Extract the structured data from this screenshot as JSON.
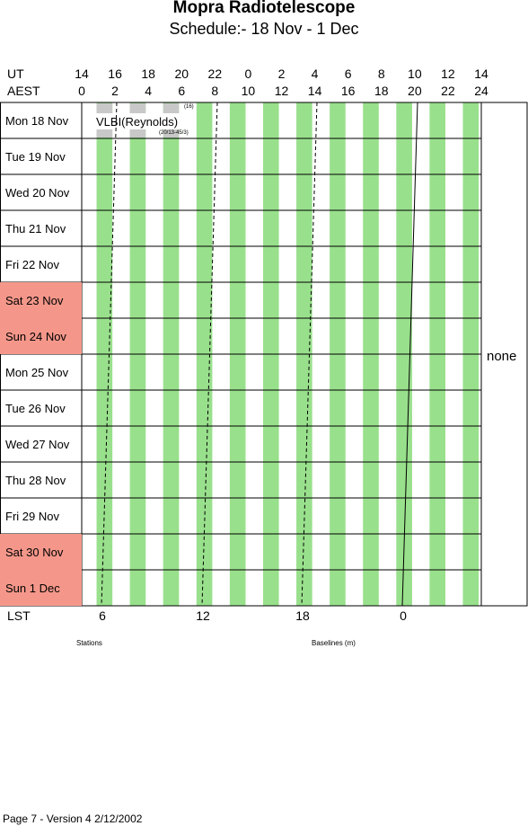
{
  "title": "Mopra Radiotelescope",
  "subtitle": "Schedule:- 18 Nov - 1  Dec",
  "header": {
    "ut_label": "UT",
    "aest_label": "AEST",
    "ut_ticks": [
      "14",
      "16",
      "18",
      "20",
      "22",
      "0",
      "2",
      "4",
      "6",
      "8",
      "10",
      "12",
      "14"
    ],
    "aest_ticks": [
      "0",
      "2",
      "4",
      "6",
      "8",
      "10",
      "12",
      "14",
      "16",
      "18",
      "20",
      "22",
      "24"
    ]
  },
  "days": [
    {
      "label": "Mon  18 Nov",
      "weekend": false
    },
    {
      "label": "Tue   19 Nov",
      "weekend": false
    },
    {
      "label": "Wed  20 Nov",
      "weekend": false
    },
    {
      "label": "Thu   21 Nov",
      "weekend": false
    },
    {
      "label": "Fri    22 Nov",
      "weekend": false
    },
    {
      "label": "Sat    23 Nov",
      "weekend": true
    },
    {
      "label": "Sun   24 Nov",
      "weekend": true
    },
    {
      "label": "Mon  25 Nov",
      "weekend": false
    },
    {
      "label": "Tue   26 Nov",
      "weekend": false
    },
    {
      "label": "Wed  27 Nov",
      "weekend": false
    },
    {
      "label": "Thu   28 Nov",
      "weekend": false
    },
    {
      "label": "Fri    29 Nov",
      "weekend": false
    },
    {
      "label": "Sat    30 Nov",
      "weekend": true
    },
    {
      "label": "Sun    1  Dec",
      "weekend": true
    }
  ],
  "observation": {
    "label": "VLBI(Reynolds)",
    "note_top": "(16)",
    "note_bottom": "(20/13-45/3)"
  },
  "side_label": "none",
  "lst": {
    "label": "LST",
    "ticks": [
      "6",
      "12",
      "18",
      "0"
    ]
  },
  "stations_label": "Stations",
  "baselines_label": "Baselines (m)",
  "footer": "Page 7 - Version 4  2/12/2002",
  "colors": {
    "green_band": "#99e08c",
    "weekend": "#f4978a",
    "vlbi_block": "#c8c8c8"
  }
}
